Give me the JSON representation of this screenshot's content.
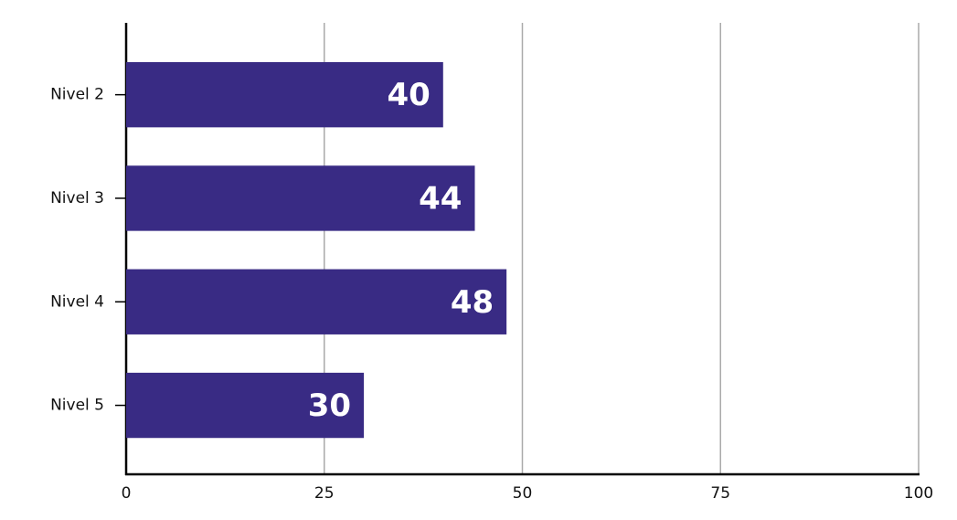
{
  "chart_data": {
    "type": "bar",
    "orientation": "horizontal",
    "categories": [
      "Nivel 2",
      "Nivel 3",
      "Nivel 4",
      "Nivel 5"
    ],
    "values": [
      40,
      44,
      48,
      30
    ],
    "color": "#392b84",
    "xlim": [
      0,
      100
    ],
    "xticks": [
      0,
      25,
      50,
      75,
      100
    ],
    "grid": true
  }
}
